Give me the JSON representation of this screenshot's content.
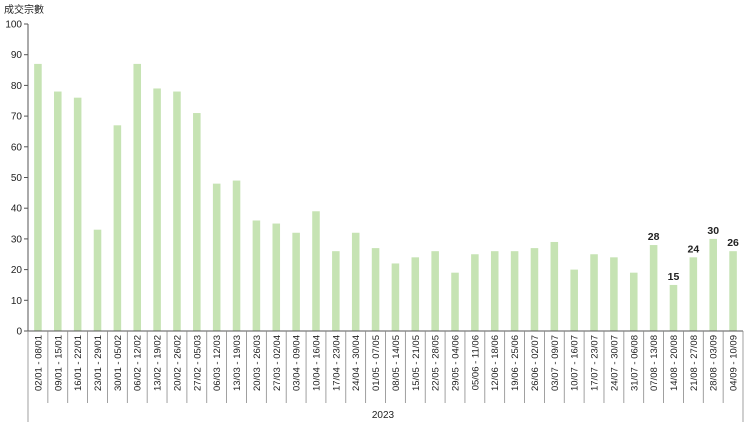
{
  "chart_data": {
    "type": "bar",
    "ylabel": "成交宗數",
    "ylim": [
      0,
      100
    ],
    "yticks": [
      0,
      10,
      20,
      30,
      40,
      50,
      60,
      70,
      80,
      90,
      100
    ],
    "group_label": "2023",
    "bar_color": "#c6e3b3",
    "grid": false,
    "categories": [
      "02/01 - 08/01",
      "09/01 - 15/01",
      "16/01 - 22/01",
      "23/01 - 29/01",
      "30/01 - 05/02",
      "06/02 - 12/02",
      "13/02 - 19/02",
      "20/02 - 26/02",
      "27/02 - 05/03",
      "06/03 - 12/03",
      "13/03 - 19/03",
      "20/03 - 26/03",
      "27/03 - 02/04",
      "03/04 - 09/04",
      "10/04 - 16/04",
      "17/04 - 23/04",
      "24/04 - 30/04",
      "01/05 - 07/05",
      "08/05 - 14/05",
      "15/05 - 21/05",
      "22/05 - 28/05",
      "29/05 - 04/06",
      "05/06 - 11/06",
      "12/06 - 18/06",
      "19/06 - 25/06",
      "26/06 - 02/07",
      "03/07 - 09/07",
      "10/07 - 16/07",
      "17/07 - 23/07",
      "24/07 - 30/07",
      "31/07 - 06/08",
      "07/08 - 13/08",
      "14/08 - 20/08",
      "21/08 - 27/08",
      "28/08 - 03/09",
      "04/09 - 10/09"
    ],
    "values": [
      87,
      78,
      76,
      33,
      67,
      87,
      79,
      78,
      71,
      48,
      49,
      36,
      35,
      32,
      39,
      26,
      32,
      27,
      22,
      24,
      26,
      19,
      25,
      26,
      26,
      27,
      29,
      20,
      25,
      24,
      19,
      28,
      15,
      24,
      30,
      26
    ],
    "data_labels": [
      {
        "index": 31,
        "text": "28"
      },
      {
        "index": 32,
        "text": "15"
      },
      {
        "index": 33,
        "text": "24"
      },
      {
        "index": 34,
        "text": "30"
      },
      {
        "index": 35,
        "text": "26"
      }
    ]
  }
}
